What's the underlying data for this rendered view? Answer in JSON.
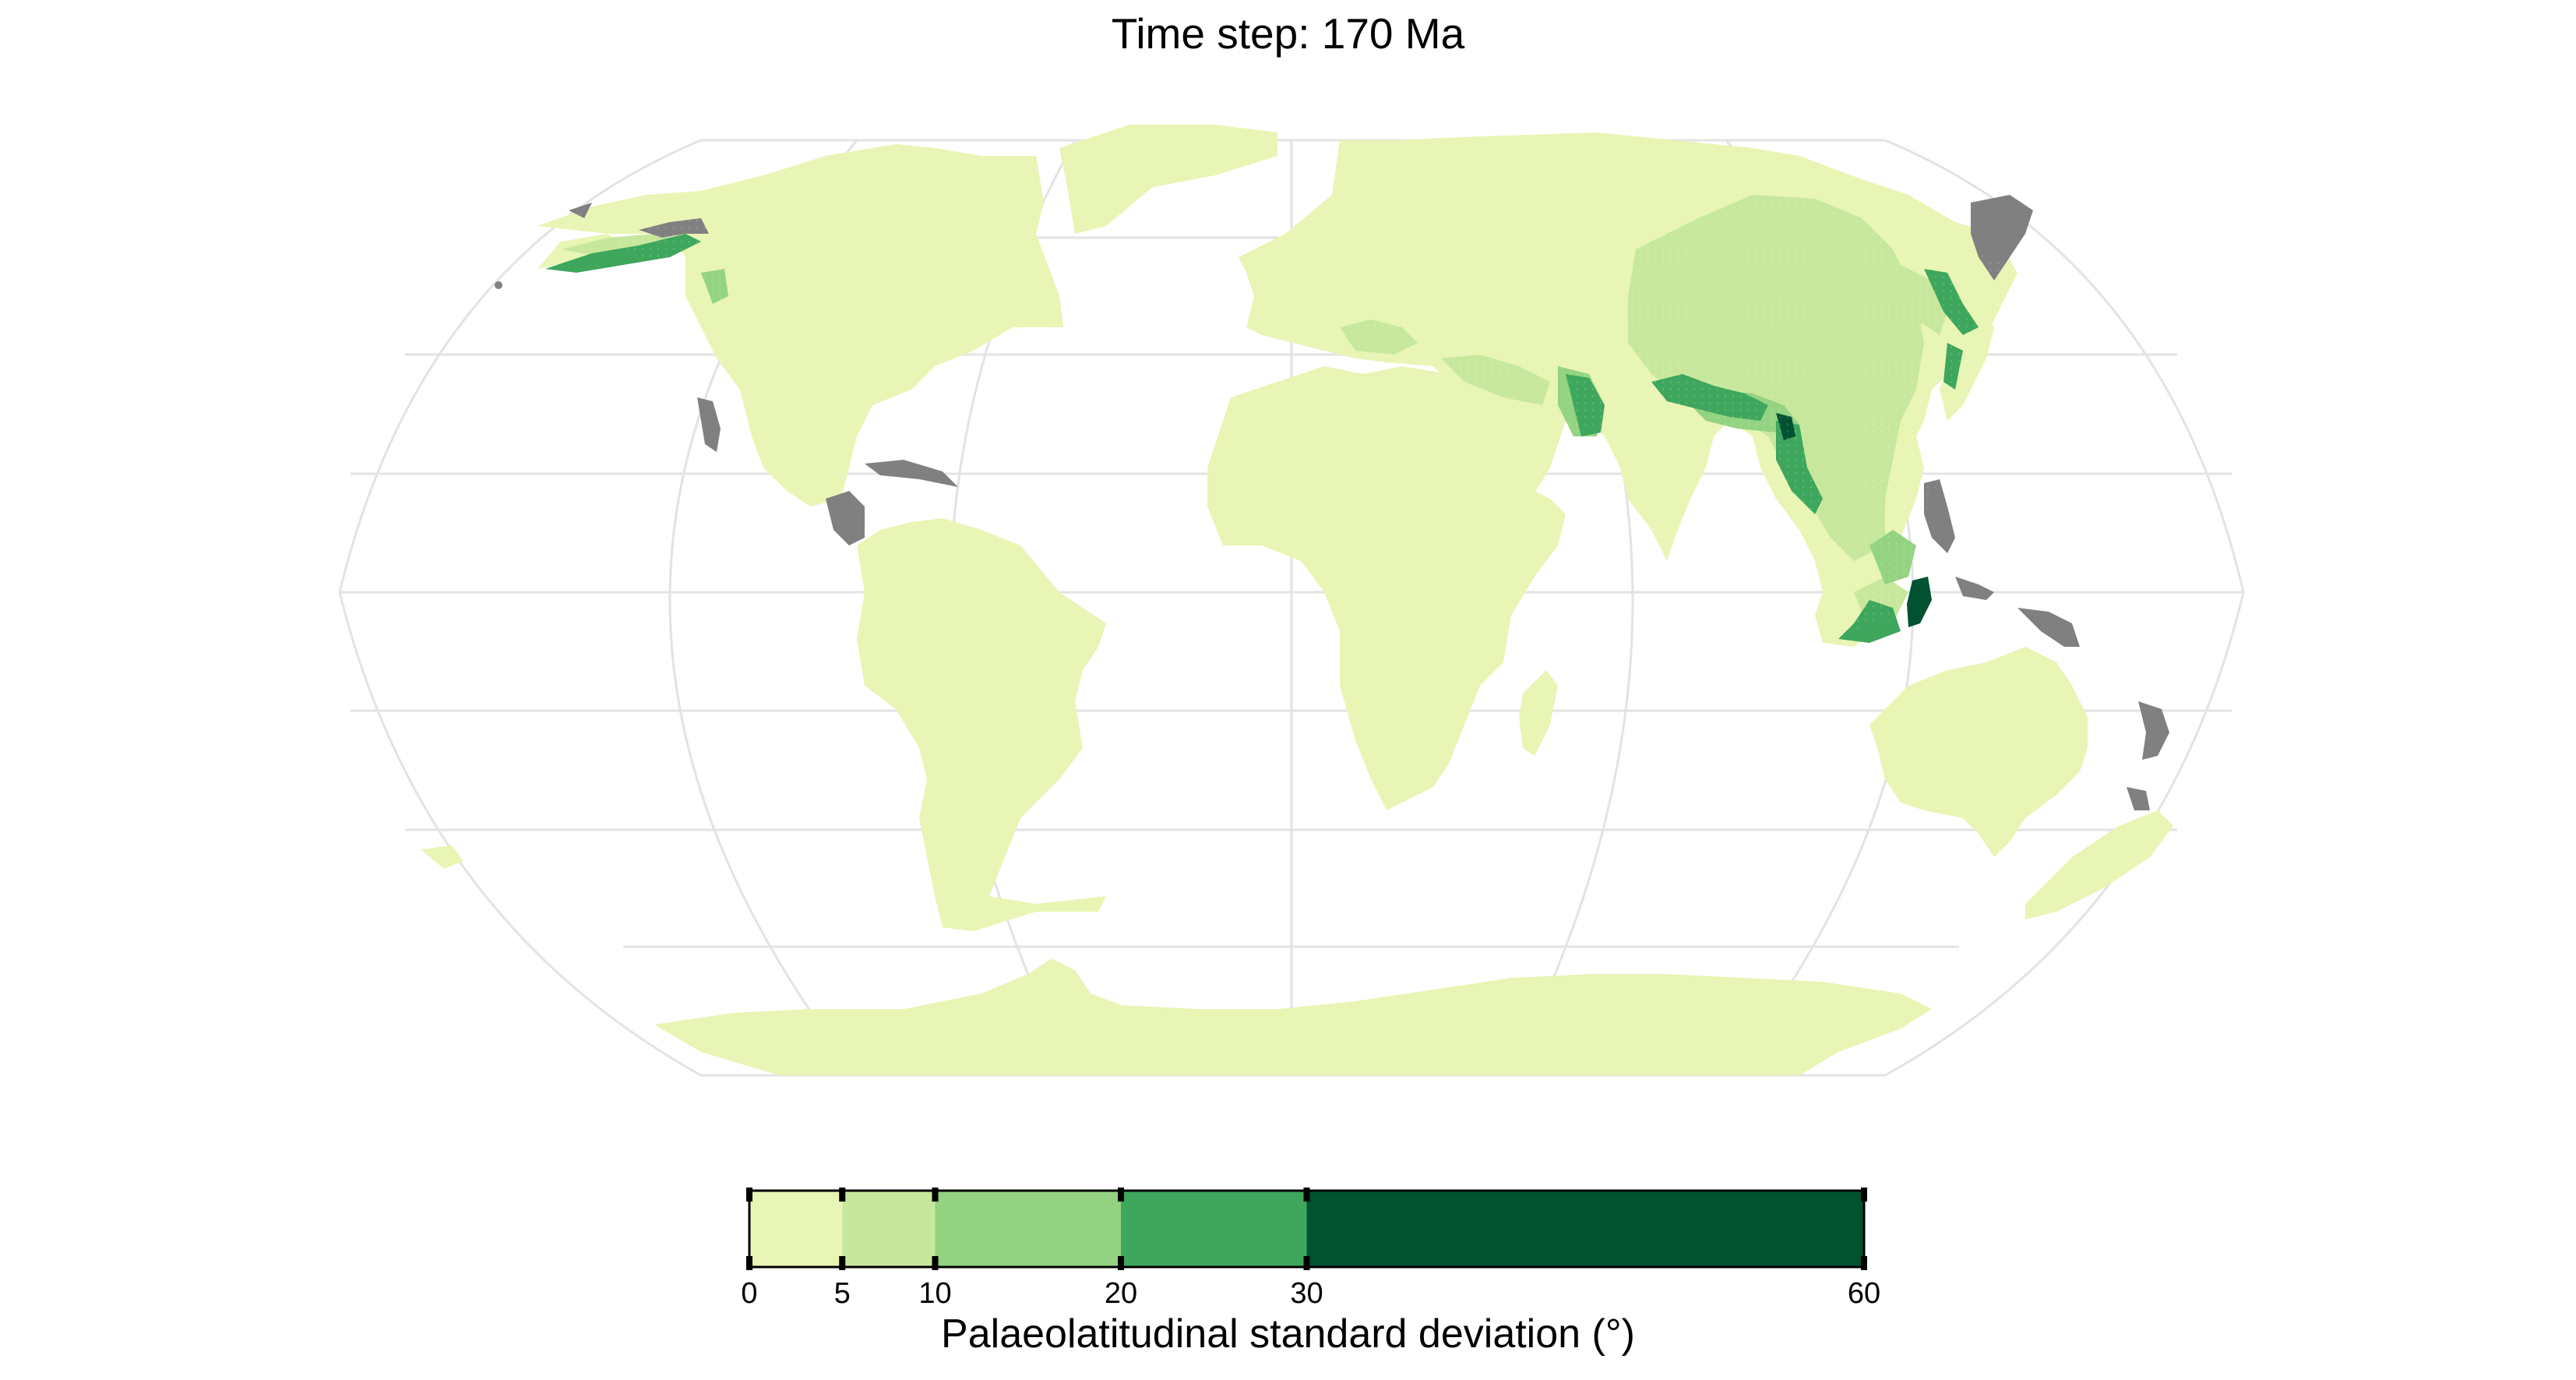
{
  "title": "Time step: 170 Ma",
  "legend": {
    "title": "Palaeolatitudinal standard deviation (°)",
    "breaks": [
      0,
      5,
      10,
      20,
      30,
      60
    ],
    "tick_labels": [
      "0",
      "5",
      "10",
      "20",
      "30",
      "60"
    ],
    "classes": [
      {
        "range": [
          0,
          5
        ],
        "color": "#e8f5b4"
      },
      {
        "range": [
          5,
          10
        ],
        "color": "#c7e89c"
      },
      {
        "range": [
          10,
          20
        ],
        "color": "#93d381"
      },
      {
        "range": [
          20,
          30
        ],
        "color": "#3ea65d"
      },
      {
        "range": [
          30,
          60
        ],
        "color": "#005230"
      }
    ],
    "no_data_color": "#808080"
  },
  "map": {
    "projection": "Robinson",
    "graticule": "on",
    "graticule_color": "#e3e3e3",
    "land_base_color": "#e8f5b4"
  }
}
